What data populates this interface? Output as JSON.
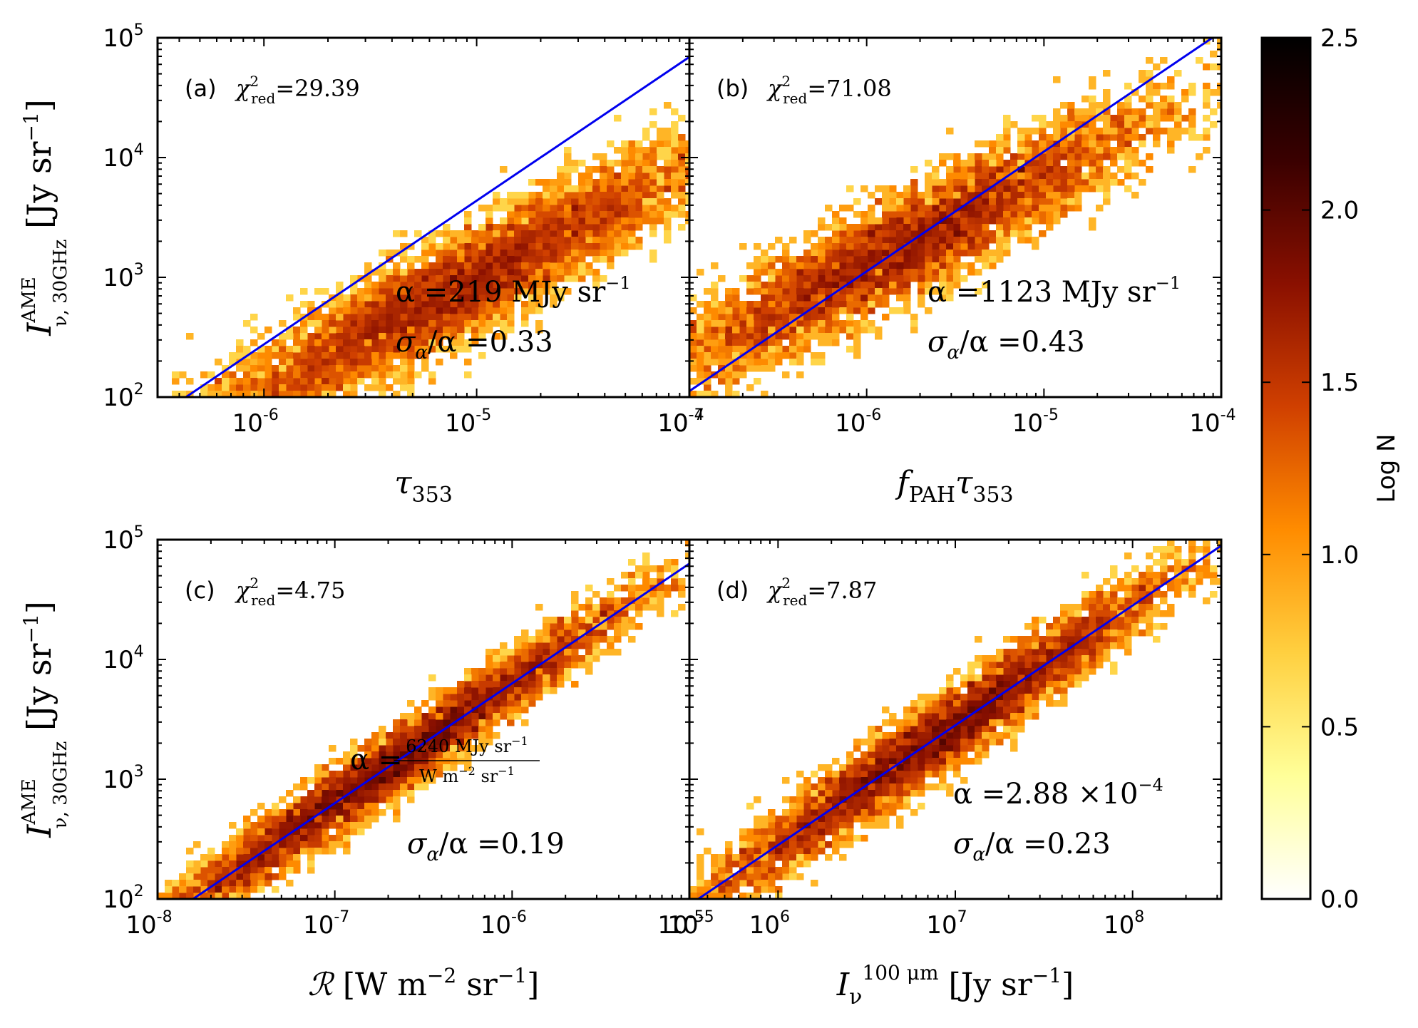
{
  "chart_data": [
    {
      "type": "scatter",
      "subtype": "hexbin-density",
      "panel": "(a)",
      "chi2_label": "χ",
      "chi2_sup": "2",
      "chi2_sub": "red",
      "chi2_value": "=29.39",
      "alpha_text": "α =219 MJy sr",
      "alpha_sup": "−1",
      "sigma_text": "σ",
      "sigma_sub": "α",
      "sigma_rest": "/α =0.33",
      "xlabel": "τ",
      "xlabel_sub": "353",
      "xlabel_sup": "",
      "xlabel_rest": "",
      "ylabel": "I",
      "ylabel_sup": "AME",
      "ylabel_sub": "ν, 30GHz",
      "ylabel_rest": "[Jy sr",
      "ylabel_unit_sup": "−1",
      "ylabel_close": "]",
      "xlog": [
        -6.5,
        -4.0
      ],
      "ylog": [
        2,
        5
      ],
      "x_ticks": [
        {
          "exp": -6,
          "label": "10",
          "sup": "-6"
        },
        {
          "exp": -5,
          "label": "10",
          "sup": "-5"
        },
        {
          "exp": -4,
          "label": "10",
          "sup": "-4"
        }
      ],
      "y_ticks": [
        {
          "exp": 2,
          "label": "10",
          "sup": "2"
        },
        {
          "exp": 3,
          "label": "10",
          "sup": "3"
        },
        {
          "exp": 4,
          "label": "10",
          "sup": "4"
        },
        {
          "exp": 5,
          "label": "10",
          "sup": "5"
        }
      ],
      "fit_line_log": {
        "x": [
          -6.5,
          -4.0
        ],
        "y": [
          1.84,
          4.84
        ]
      },
      "density": {
        "x_center": -5.1,
        "y_slope": 0.93,
        "y_int": 7.64,
        "spread": 0.22,
        "x_span": 1.4
      }
    },
    {
      "type": "scatter",
      "subtype": "hexbin-density",
      "panel": "(b)",
      "chi2_label": "χ",
      "chi2_sup": "2",
      "chi2_sub": "red",
      "chi2_value": "=71.08",
      "alpha_text": "α =1123 MJy sr",
      "alpha_sup": "−1",
      "sigma_text": "σ",
      "sigma_sub": "α",
      "sigma_rest": "/α =0.43",
      "xlabel": "f",
      "xlabel_sub": "PAH",
      "xlabel_rest": "τ",
      "xlabel_rest_sub": "353",
      "xlog": [
        -7.0,
        -4.0
      ],
      "ylog": [
        2,
        5
      ],
      "x_ticks": [
        {
          "exp": -7,
          "label": "10",
          "sup": "-7"
        },
        {
          "exp": -6,
          "label": "10",
          "sup": "-6"
        },
        {
          "exp": -5,
          "label": "10",
          "sup": "-5"
        },
        {
          "exp": -4,
          "label": "10",
          "sup": "-4"
        }
      ],
      "y_ticks": [
        {
          "exp": 2,
          "label": "10",
          "sup": "2"
        },
        {
          "exp": 3,
          "label": "10",
          "sup": "3"
        },
        {
          "exp": 4,
          "label": "10",
          "sup": "4"
        },
        {
          "exp": 5,
          "label": "10",
          "sup": "5"
        }
      ],
      "fit_line_log": {
        "x": [
          -7.0,
          -4.05
        ],
        "y": [
          2.05,
          5.0
        ]
      },
      "density": {
        "x_center": -5.8,
        "y_slope": 0.75,
        "y_int": 7.6,
        "spread": 0.22,
        "x_span": 1.6
      }
    },
    {
      "type": "scatter",
      "subtype": "hexbin-density",
      "panel": "(c)",
      "chi2_label": "χ",
      "chi2_sup": "2",
      "chi2_sub": "red",
      "chi2_value": "=4.75",
      "alpha_text": "α =",
      "alpha_num": "6240 MJy sr",
      "alpha_num_sup": "−1",
      "alpha_den": "W m",
      "alpha_den_sup": "−2",
      "alpha_den_rest": "sr",
      "alpha_den_sup2": "−1",
      "sigma_text": "σ",
      "sigma_sub": "α",
      "sigma_rest": "/α =0.19",
      "xlabel": "ℛ",
      "xlabel_rest": "[W m",
      "xlabel_sup1": "−2",
      "xlabel_rest2": "sr",
      "xlabel_sup2": "−1",
      "xlabel_close": "]",
      "ylabel": "I",
      "ylabel_sup": "AME",
      "ylabel_sub": "ν, 30GHz",
      "ylabel_rest": "[Jy sr",
      "ylabel_unit_sup": "−1",
      "ylabel_close": "]",
      "xlog": [
        -8.0,
        -5.0
      ],
      "ylog": [
        2,
        5
      ],
      "x_ticks": [
        {
          "exp": -8,
          "label": "10",
          "sup": "-8"
        },
        {
          "exp": -7,
          "label": "10",
          "sup": "-7"
        },
        {
          "exp": -6,
          "label": "10",
          "sup": "-6"
        },
        {
          "exp": -5,
          "label": "10",
          "sup": "-5"
        }
      ],
      "y_ticks": [
        {
          "exp": 2,
          "label": "10",
          "sup": "2"
        },
        {
          "exp": 3,
          "label": "10",
          "sup": "3"
        },
        {
          "exp": 4,
          "label": "10",
          "sup": "4"
        },
        {
          "exp": 5,
          "label": "10",
          "sup": "5"
        }
      ],
      "fit_line_log": {
        "x": [
          -7.8,
          -5.0
        ],
        "y": [
          2.0,
          4.8
        ]
      },
      "density": {
        "x_center": -6.7,
        "y_slope": 1.0,
        "y_int": 9.8,
        "spread": 0.14,
        "x_span": 1.6
      }
    },
    {
      "type": "scatter",
      "subtype": "hexbin-density",
      "panel": "(d)",
      "chi2_label": "χ",
      "chi2_sup": "2",
      "chi2_sub": "red",
      "chi2_value": "=7.87",
      "alpha_text": "α =2.88 ×10",
      "alpha_sup": "−4",
      "sigma_text": "σ",
      "sigma_sub": "α",
      "sigma_rest": "/α =0.23",
      "xlabel": "I",
      "xlabel_sub": "ν",
      "xlabel_sup": "100 μm",
      "xlabel_rest": "[Jy sr",
      "xlabel_unit_sup": "−1",
      "xlabel_close": "]",
      "xlog": [
        5.5,
        8.5
      ],
      "ylog": [
        2,
        5
      ],
      "x_ticks": [
        {
          "exp": 6,
          "label": "10",
          "sup": "6"
        },
        {
          "exp": 7,
          "label": "10",
          "sup": "7"
        },
        {
          "exp": 8,
          "label": "10",
          "sup": "8"
        }
      ],
      "extra_left_tick": {
        "label": "10",
        "sup": "-5"
      },
      "y_ticks": [
        {
          "exp": 2,
          "label": "10",
          "sup": "2"
        },
        {
          "exp": 3,
          "label": "10",
          "sup": "3"
        },
        {
          "exp": 4,
          "label": "10",
          "sup": "4"
        },
        {
          "exp": 5,
          "label": "10",
          "sup": "5"
        }
      ],
      "fit_line_log": {
        "x": [
          5.55,
          8.5
        ],
        "y": [
          2.0,
          4.95
        ]
      },
      "density": {
        "x_center": 6.9,
        "y_slope": 1.0,
        "y_int": -3.55,
        "spread": 0.16,
        "x_span": 1.5
      }
    }
  ],
  "colorbar": {
    "label": "Log N",
    "min": 0.0,
    "max": 2.5,
    "ticks": [
      "0.0",
      "0.5",
      "1.0",
      "1.5",
      "2.0",
      "2.5"
    ],
    "cmap": [
      "#ffffff",
      "#ffff99",
      "#ffd040",
      "#ff8c00",
      "#d04000",
      "#8a1000",
      "#3a0000",
      "#000000"
    ]
  },
  "colors": {
    "fit_line": "#0000ee",
    "axes": "#000000"
  }
}
